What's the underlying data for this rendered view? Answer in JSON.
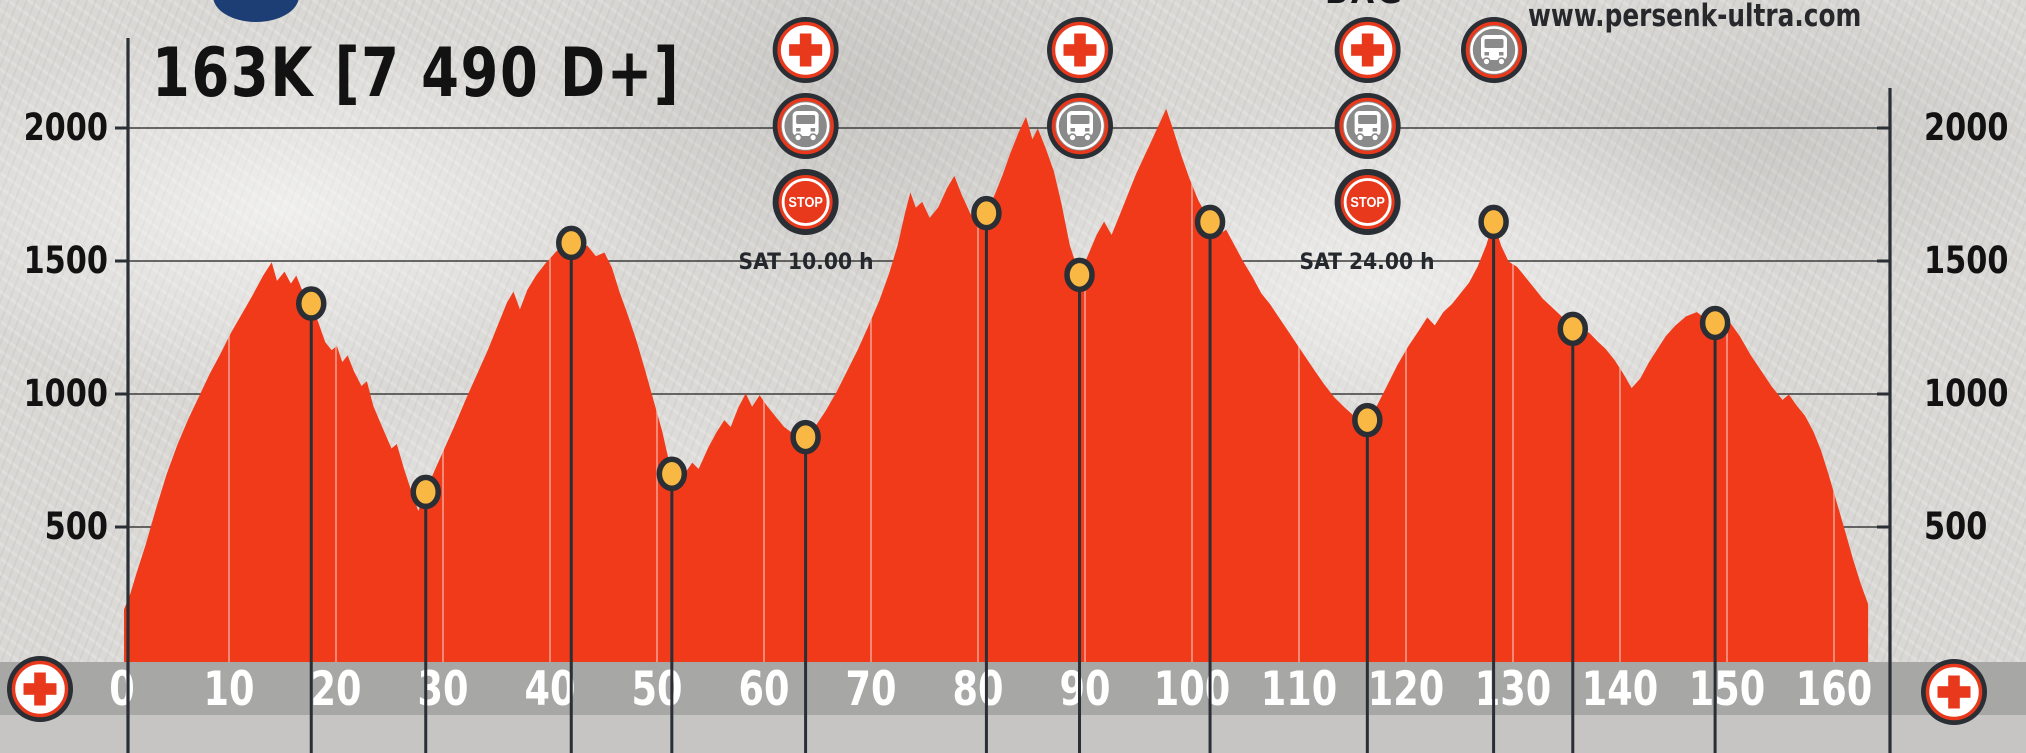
{
  "title": "163K [7 490 D+]",
  "website": "www.persenk-ultra.com",
  "top_partial_label": "BAG",
  "stop_icon_text": "STOP",
  "aid_stations": [
    {
      "km": 63.7,
      "icons": [
        "medical-cross",
        "bus",
        "stop"
      ],
      "note": "SAT 10.00 h"
    },
    {
      "km": 89.3,
      "icons": [
        "medical-cross",
        "bus"
      ],
      "note": ""
    },
    {
      "km": 116.2,
      "icons": [
        "medical-cross",
        "bus",
        "stop"
      ],
      "note": "SAT 24.00 h"
    },
    {
      "km": 128.0,
      "icons": [
        "bus"
      ],
      "note": ""
    }
  ],
  "start_finish_markers": [
    {
      "icon": "medical-cross",
      "position": "bottom-left"
    },
    {
      "icon": "medical-cross",
      "position": "bottom-right"
    }
  ],
  "colors": {
    "profile_red": "#f03a1a",
    "marker_yellow": "#f8b843",
    "line_dark": "#2a2e35",
    "grid": "#3c3c3c",
    "band_gray": "#a7a7a6",
    "band_light": "#c6c5c4",
    "label_white": "#ffffff",
    "bus_gray": "#8a8a8a",
    "logo_navy": "#1d3e74",
    "text_black": "#121212"
  },
  "chart_data": {
    "type": "area",
    "title": "163K [7 490 D+]",
    "x_unit": "km",
    "y_unit": "m",
    "xlim": [
      0,
      166
    ],
    "ylim": [
      0,
      2200
    ],
    "x_ticks": [
      0,
      10,
      20,
      30,
      40,
      50,
      60,
      70,
      80,
      90,
      100,
      110,
      120,
      130,
      140,
      150,
      160
    ],
    "y_ticks": [
      500,
      1000,
      1500,
      2000
    ],
    "grid": true,
    "y_axis_sides": "both",
    "profile_km_m": [
      [
        0,
        190
      ],
      [
        0.6,
        250
      ],
      [
        1.2,
        330
      ],
      [
        2,
        430
      ],
      [
        3,
        570
      ],
      [
        4,
        700
      ],
      [
        5,
        810
      ],
      [
        6,
        905
      ],
      [
        7,
        990
      ],
      [
        8,
        1075
      ],
      [
        9,
        1150
      ],
      [
        10,
        1230
      ],
      [
        11,
        1300
      ],
      [
        12,
        1370
      ],
      [
        13,
        1445
      ],
      [
        13.8,
        1495
      ],
      [
        14.3,
        1425
      ],
      [
        15,
        1460
      ],
      [
        15.6,
        1415
      ],
      [
        16.1,
        1445
      ],
      [
        16.6,
        1395
      ],
      [
        17.5,
        1340
      ],
      [
        18.2,
        1265
      ],
      [
        18.8,
        1195
      ],
      [
        19.4,
        1165
      ],
      [
        19.9,
        1180
      ],
      [
        20.4,
        1120
      ],
      [
        20.9,
        1145
      ],
      [
        21.5,
        1085
      ],
      [
        22.2,
        1030
      ],
      [
        22.7,
        1048
      ],
      [
        23.3,
        955
      ],
      [
        24.2,
        870
      ],
      [
        25,
        795
      ],
      [
        25.5,
        812
      ],
      [
        26.2,
        715
      ],
      [
        26.9,
        630
      ],
      [
        27.5,
        560
      ],
      [
        28.2,
        632
      ],
      [
        29,
        710
      ],
      [
        30,
        800
      ],
      [
        31,
        890
      ],
      [
        32,
        985
      ],
      [
        33,
        1075
      ],
      [
        34,
        1165
      ],
      [
        35,
        1265
      ],
      [
        35.8,
        1345
      ],
      [
        36.4,
        1385
      ],
      [
        37,
        1318
      ],
      [
        37.7,
        1392
      ],
      [
        38.5,
        1445
      ],
      [
        39.4,
        1492
      ],
      [
        40.5,
        1540
      ],
      [
        41.8,
        1568
      ],
      [
        42.6,
        1542
      ],
      [
        43.3,
        1558
      ],
      [
        44.1,
        1518
      ],
      [
        44.9,
        1532
      ],
      [
        45.6,
        1475
      ],
      [
        46.3,
        1385
      ],
      [
        47.1,
        1295
      ],
      [
        47.9,
        1200
      ],
      [
        48.7,
        1090
      ],
      [
        49.5,
        975
      ],
      [
        50.3,
        860
      ],
      [
        51.2,
        700
      ],
      [
        51.8,
        662
      ],
      [
        52.4,
        700
      ],
      [
        53.1,
        742
      ],
      [
        53.7,
        718
      ],
      [
        54.6,
        798
      ],
      [
        55.4,
        858
      ],
      [
        56.1,
        902
      ],
      [
        56.7,
        876
      ],
      [
        57.4,
        948
      ],
      [
        58.1,
        1002
      ],
      [
        58.7,
        952
      ],
      [
        59.4,
        996
      ],
      [
        60.1,
        955
      ],
      [
        60.9,
        915
      ],
      [
        61.7,
        876
      ],
      [
        62.5,
        852
      ],
      [
        63.7,
        838
      ],
      [
        64.6,
        878
      ],
      [
        65.6,
        938
      ],
      [
        66.6,
        1008
      ],
      [
        67.6,
        1088
      ],
      [
        68.6,
        1168
      ],
      [
        69.6,
        1258
      ],
      [
        70.6,
        1352
      ],
      [
        71.5,
        1452
      ],
      [
        72.3,
        1558
      ],
      [
        73,
        1682
      ],
      [
        73.5,
        1758
      ],
      [
        74,
        1700
      ],
      [
        74.6,
        1722
      ],
      [
        75.3,
        1662
      ],
      [
        76.1,
        1702
      ],
      [
        76.9,
        1772
      ],
      [
        77.6,
        1820
      ],
      [
        78.3,
        1748
      ],
      [
        79.1,
        1678
      ],
      [
        79.8,
        1640
      ],
      [
        80.6,
        1680
      ],
      [
        81.4,
        1752
      ],
      [
        82.1,
        1822
      ],
      [
        82.8,
        1902
      ],
      [
        83.6,
        1982
      ],
      [
        84.3,
        2042
      ],
      [
        84.9,
        1958
      ],
      [
        85.4,
        1998
      ],
      [
        86.1,
        1928
      ],
      [
        86.9,
        1838
      ],
      [
        87.6,
        1718
      ],
      [
        88.4,
        1558
      ],
      [
        89.3,
        1448
      ],
      [
        90.1,
        1522
      ],
      [
        90.9,
        1598
      ],
      [
        91.6,
        1648
      ],
      [
        92.3,
        1598
      ],
      [
        93.1,
        1678
      ],
      [
        93.9,
        1758
      ],
      [
        94.6,
        1828
      ],
      [
        95.4,
        1898
      ],
      [
        96.1,
        1958
      ],
      [
        96.9,
        2028
      ],
      [
        97.4,
        2072
      ],
      [
        98.1,
        1988
      ],
      [
        98.8,
        1898
      ],
      [
        99.6,
        1808
      ],
      [
        100.4,
        1728
      ],
      [
        101.5,
        1647
      ],
      [
        102.3,
        1598
      ],
      [
        103,
        1618
      ],
      [
        103.8,
        1558
      ],
      [
        104.6,
        1498
      ],
      [
        105.5,
        1438
      ],
      [
        106.3,
        1378
      ],
      [
        107.1,
        1338
      ],
      [
        108.1,
        1278
      ],
      [
        109.1,
        1218
      ],
      [
        110.1,
        1158
      ],
      [
        111.1,
        1098
      ],
      [
        112.1,
        1040
      ],
      [
        113.1,
        988
      ],
      [
        114.1,
        948
      ],
      [
        115.1,
        912
      ],
      [
        116.2,
        902
      ],
      [
        117,
        948
      ],
      [
        118,
        1028
      ],
      [
        119,
        1108
      ],
      [
        120,
        1178
      ],
      [
        121,
        1238
      ],
      [
        121.8,
        1288
      ],
      [
        122.5,
        1258
      ],
      [
        123.3,
        1308
      ],
      [
        124.1,
        1338
      ],
      [
        124.9,
        1378
      ],
      [
        125.7,
        1418
      ],
      [
        126.5,
        1478
      ],
      [
        127.3,
        1558
      ],
      [
        128,
        1647
      ],
      [
        128.7,
        1558
      ],
      [
        129.4,
        1498
      ],
      [
        130.2,
        1478
      ],
      [
        131,
        1438
      ],
      [
        131.8,
        1398
      ],
      [
        132.6,
        1358
      ],
      [
        133.4,
        1328
      ],
      [
        134.2,
        1298
      ],
      [
        135.4,
        1245
      ],
      [
        136.2,
        1218
      ],
      [
        136.9,
        1232
      ],
      [
        137.7,
        1198
      ],
      [
        138.5,
        1168
      ],
      [
        139.3,
        1128
      ],
      [
        140.1,
        1078
      ],
      [
        140.9,
        1022
      ],
      [
        141.7,
        1058
      ],
      [
        142.5,
        1118
      ],
      [
        143.3,
        1168
      ],
      [
        144.1,
        1218
      ],
      [
        145,
        1258
      ],
      [
        146,
        1292
      ],
      [
        147,
        1308
      ],
      [
        147.8,
        1283
      ],
      [
        148.7,
        1267
      ],
      [
        149.4,
        1288
      ],
      [
        150.1,
        1268
      ],
      [
        151,
        1218
      ],
      [
        152,
        1148
      ],
      [
        153,
        1088
      ],
      [
        154,
        1028
      ],
      [
        155,
        978
      ],
      [
        155.6,
        998
      ],
      [
        156.3,
        958
      ],
      [
        157.1,
        918
      ],
      [
        157.9,
        858
      ],
      [
        158.6,
        788
      ],
      [
        159.3,
        698
      ],
      [
        160.1,
        588
      ],
      [
        160.9,
        478
      ],
      [
        161.6,
        378
      ],
      [
        162.3,
        288
      ],
      [
        163,
        210
      ]
    ],
    "checkpoints_km_m": [
      [
        17.5,
        1340
      ],
      [
        28.2,
        632
      ],
      [
        41.8,
        1568
      ],
      [
        51.2,
        700
      ],
      [
        63.7,
        838
      ],
      [
        80.6,
        1680
      ],
      [
        89.3,
        1448
      ],
      [
        101.5,
        1647
      ],
      [
        116.2,
        902
      ],
      [
        128,
        1647
      ],
      [
        135.4,
        1245
      ],
      [
        148.7,
        1267
      ]
    ]
  }
}
